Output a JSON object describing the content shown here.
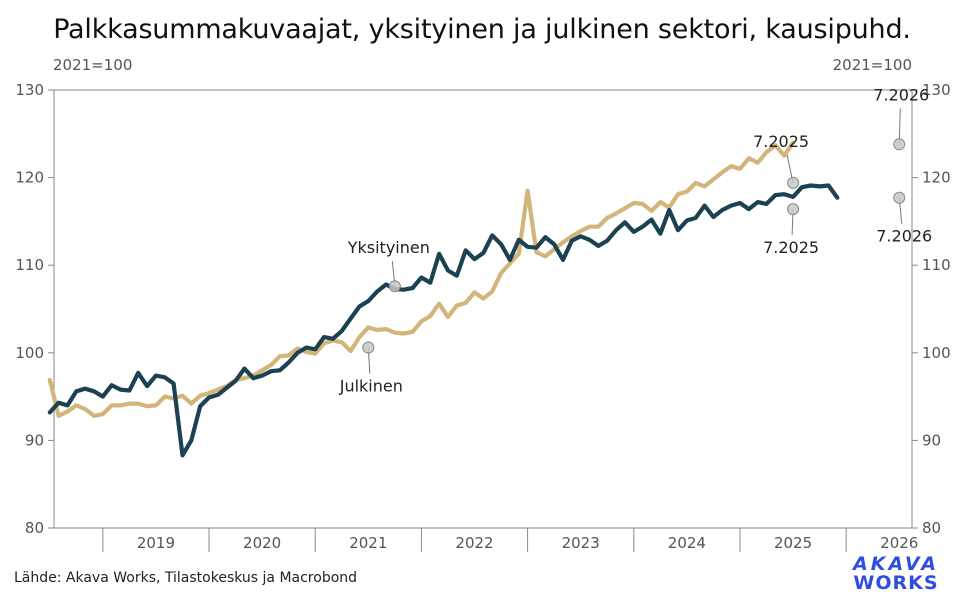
{
  "title": "Palkkasummakuvaajat, yksityinen ja julkinen sektori, kausipuhd.",
  "unit_left": "2021=100",
  "unit_right": "2021=100",
  "source": "Lähde: Akava Works, Tilastokeskus ja Macrobond",
  "logo": {
    "line1": "AKAVA",
    "line2": "WORKS"
  },
  "colors": {
    "yksityinen": "#1b4152",
    "julkinen": "#d3b57a",
    "marker": "#c8c8c8",
    "axis": "#888888"
  },
  "chart_data": {
    "type": "line",
    "title": "Palkkasummakuvaajat, yksityinen ja julkinen sektori, kausipuhd.",
    "ylabel": "2021=100",
    "ylim": [
      80,
      130
    ],
    "yticks": [
      80,
      90,
      100,
      110,
      120,
      130
    ],
    "xlim": [
      2018.54,
      2026.62
    ],
    "x_labels": [
      {
        "label": "2019",
        "x": 2019.0
      },
      {
        "label": "2020",
        "x": 2020.0
      },
      {
        "label": "2021",
        "x": 2021.0
      },
      {
        "label": "2022",
        "x": 2022.0
      },
      {
        "label": "2023",
        "x": 2023.0
      },
      {
        "label": "2024",
        "x": 2024.0
      },
      {
        "label": "2025",
        "x": 2025.0
      },
      {
        "label": "2026",
        "x": 2026.0
      }
    ],
    "x_start": "2018-07",
    "grid": false,
    "series": [
      {
        "name": "Yksityinen",
        "values": [
          93.2,
          94.3,
          94.0,
          95.6,
          95.9,
          95.6,
          95.0,
          96.3,
          95.8,
          95.7,
          97.7,
          96.2,
          97.4,
          97.2,
          96.5,
          88.3,
          90.0,
          93.9,
          94.9,
          95.2,
          96.0,
          96.8,
          98.2,
          97.1,
          97.4,
          97.9,
          98.0,
          98.9,
          100.0,
          100.6,
          100.4,
          101.8,
          101.6,
          102.5,
          103.9,
          105.3,
          105.9,
          107.0,
          107.8,
          107.3,
          107.2,
          107.4,
          108.6,
          108.0,
          111.3,
          109.4,
          108.8,
          111.7,
          110.7,
          111.4,
          113.4,
          112.4,
          110.6,
          112.9,
          112.1,
          112.0,
          113.2,
          112.4,
          110.6,
          112.8,
          113.3,
          112.9,
          112.2,
          112.8,
          114.0,
          114.9,
          113.8,
          114.4,
          115.2,
          113.6,
          116.3,
          114.0,
          115.1,
          115.4,
          116.8,
          115.5,
          116.3,
          116.8,
          117.1,
          116.4,
          117.2,
          117.0,
          118.0,
          118.1,
          117.8,
          118.9,
          119.1,
          119.0,
          119.1,
          117.7
        ]
      },
      {
        "name": "Julkinen",
        "values": [
          96.9,
          92.8,
          93.3,
          94.0,
          93.6,
          92.8,
          93.0,
          94.0,
          94.0,
          94.2,
          94.2,
          93.9,
          94.0,
          95.0,
          94.8,
          95.1,
          94.2,
          95.1,
          95.4,
          95.8,
          96.2,
          96.9,
          97.1,
          97.4,
          98.0,
          98.6,
          99.6,
          99.7,
          100.5,
          100.1,
          99.9,
          101.1,
          101.4,
          101.2,
          100.2,
          101.8,
          102.9,
          102.6,
          102.7,
          102.3,
          102.2,
          102.4,
          103.6,
          104.2,
          105.6,
          104.1,
          105.4,
          105.7,
          106.9,
          106.2,
          107.0,
          109.1,
          110.2,
          111.3,
          118.5,
          111.5,
          111.0,
          111.8,
          112.6,
          113.3,
          113.9,
          114.4,
          114.4,
          115.4,
          115.9,
          116.5,
          117.1,
          117.0,
          116.2,
          117.2,
          116.6,
          118.1,
          118.4,
          119.4,
          119.0,
          119.8,
          120.6,
          121.3,
          121.0,
          122.2,
          121.7,
          122.9,
          123.7,
          122.5,
          124.0
        ]
      }
    ],
    "annotations": [
      {
        "label": "Yksityinen",
        "series": "Yksityinen",
        "x_date": "2021-10",
        "y": 107.6
      },
      {
        "label": "Julkinen",
        "series": "Julkinen",
        "x_date": "2021-07",
        "y": 100.6
      },
      {
        "label": "7.2025",
        "series": "Julkinen",
        "x_date": "2025-07",
        "y": 119.4
      },
      {
        "label": "7.2026",
        "series": "Julkinen",
        "x_date": "2026-07",
        "y": 123.8
      },
      {
        "label": "7.2025",
        "series": "Yksityinen",
        "x_date": "2025-07",
        "y": 116.4
      },
      {
        "label": "7.2026",
        "series": "Yksityinen",
        "x_date": "2026-07",
        "y": 117.7
      }
    ]
  }
}
